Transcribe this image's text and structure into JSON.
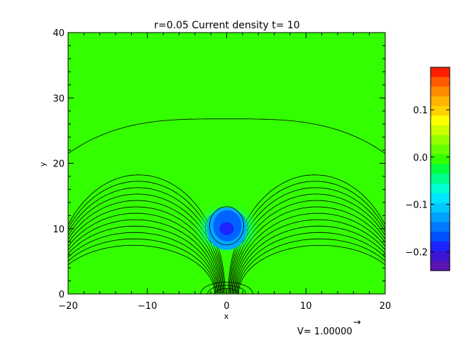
{
  "chart_data": {
    "type": "heatmap",
    "title": "r=0.05 Current density t= 10",
    "xlabel": "x",
    "ylabel": "y",
    "xlim": [
      -20,
      20
    ],
    "ylim": [
      0,
      40
    ],
    "x_ticks": [
      "−20",
      "−10",
      "0",
      "10",
      "20"
    ],
    "y_ticks": [
      "0",
      "10",
      "20",
      "30",
      "40"
    ],
    "colorbar": {
      "range": [
        -0.24,
        0.19
      ],
      "ticks": [
        {
          "value": 0.1,
          "label": "0.1"
        },
        {
          "value": 0.0,
          "label": "0.0"
        },
        {
          "value": -0.1,
          "label": "−0.1"
        },
        {
          "value": -0.2,
          "label": "−0.2"
        }
      ]
    },
    "background_value": 0.0,
    "blob": {
      "x": 0,
      "y": 10,
      "min_value": -0.24
    },
    "annotation": "V= 1.00000",
    "arrow_glyph": "→",
    "colors": {
      "field": "#33ff00",
      "contour": "#000000",
      "blob_core": "#1e24ff",
      "blob_mid": "#00a8ff"
    }
  }
}
